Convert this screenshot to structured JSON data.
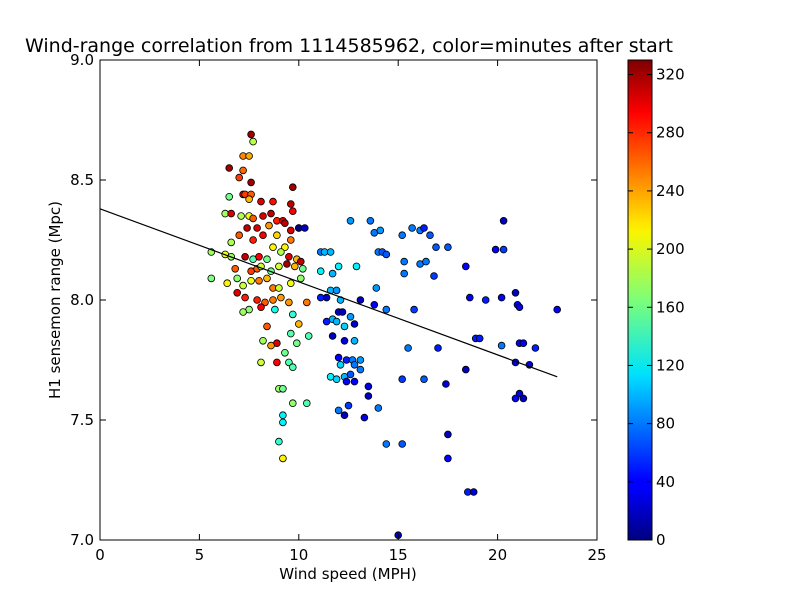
{
  "chart_data": {
    "type": "scatter",
    "title": "Wind-range correlation from 1114585962, color=minutes after start",
    "xlabel": "Wind speed (MPH)",
    "ylabel": "H1 sensemon range (Mpc)",
    "xlim": [
      0,
      25
    ],
    "ylim": [
      7.0,
      9.0
    ],
    "xticks": [
      "0",
      "5",
      "10",
      "15",
      "20",
      "25"
    ],
    "yticks": [
      "7.0",
      "7.5",
      "8.0",
      "8.5",
      "9.0"
    ],
    "grid": false,
    "colorbar": {
      "colormap": "jet",
      "range": [
        0,
        330
      ],
      "ticks": [
        "0",
        "40",
        "80",
        "120",
        "160",
        "200",
        "240",
        "280",
        "320"
      ]
    },
    "fit_line": {
      "x": [
        0,
        23
      ],
      "y": [
        8.38,
        7.68
      ]
    },
    "points": [
      [
        7.6,
        8.69,
        320
      ],
      [
        7.7,
        8.66,
        185
      ],
      [
        7.2,
        8.6,
        245
      ],
      [
        7.5,
        8.6,
        235
      ],
      [
        6.5,
        8.55,
        320
      ],
      [
        7.2,
        8.54,
        255
      ],
      [
        7.0,
        8.51,
        270
      ],
      [
        7.6,
        8.49,
        320
      ],
      [
        6.5,
        8.43,
        160
      ],
      [
        7.2,
        8.44,
        300
      ],
      [
        7.3,
        8.44,
        270
      ],
      [
        7.6,
        8.44,
        260
      ],
      [
        7.5,
        8.42,
        230
      ],
      [
        9.7,
        8.47,
        320
      ],
      [
        8.1,
        8.41,
        300
      ],
      [
        8.7,
        8.41,
        285
      ],
      [
        9.6,
        8.4,
        310
      ],
      [
        6.3,
        8.36,
        175
      ],
      [
        6.6,
        8.36,
        300
      ],
      [
        7.1,
        8.35,
        180
      ],
      [
        7.5,
        8.35,
        200
      ],
      [
        7.7,
        8.34,
        260
      ],
      [
        8.2,
        8.35,
        300
      ],
      [
        8.6,
        8.36,
        310
      ],
      [
        8.9,
        8.33,
        280
      ],
      [
        9.2,
        8.33,
        300
      ],
      [
        9.7,
        8.37,
        290
      ],
      [
        10.0,
        8.3,
        320
      ],
      [
        7.4,
        8.3,
        310
      ],
      [
        7.9,
        8.3,
        300
      ],
      [
        8.5,
        8.31,
        240
      ],
      [
        9.3,
        8.32,
        310
      ],
      [
        9.6,
        8.29,
        300
      ],
      [
        6.6,
        8.24,
        180
      ],
      [
        7.0,
        8.27,
        260
      ],
      [
        7.7,
        8.25,
        280
      ],
      [
        8.2,
        8.27,
        290
      ],
      [
        8.9,
        8.27,
        220
      ],
      [
        9.3,
        8.22,
        210
      ],
      [
        9.6,
        8.25,
        250
      ],
      [
        5.6,
        8.2,
        175
      ],
      [
        6.3,
        8.19,
        200
      ],
      [
        6.6,
        8.18,
        175
      ],
      [
        7.3,
        8.18,
        310
      ],
      [
        7.7,
        8.17,
        150
      ],
      [
        8.0,
        8.18,
        290
      ],
      [
        8.4,
        8.17,
        160
      ],
      [
        8.7,
        8.22,
        210
      ],
      [
        9.1,
        8.2,
        180
      ],
      [
        9.5,
        8.18,
        300
      ],
      [
        9.9,
        8.17,
        230
      ],
      [
        10.1,
        8.16,
        310
      ],
      [
        6.8,
        8.13,
        260
      ],
      [
        7.6,
        8.12,
        270
      ],
      [
        7.9,
        8.13,
        260
      ],
      [
        8.1,
        8.14,
        190
      ],
      [
        8.6,
        8.12,
        160
      ],
      [
        9.0,
        8.14,
        190
      ],
      [
        9.4,
        8.15,
        320
      ],
      [
        9.8,
        8.14,
        230
      ],
      [
        10.2,
        8.13,
        160
      ],
      [
        5.6,
        8.09,
        165
      ],
      [
        6.4,
        8.07,
        210
      ],
      [
        6.9,
        8.09,
        170
      ],
      [
        7.2,
        8.06,
        190
      ],
      [
        7.6,
        8.08,
        200
      ],
      [
        8.0,
        8.08,
        250
      ],
      [
        8.4,
        8.09,
        230
      ],
      [
        8.7,
        8.05,
        250
      ],
      [
        9.0,
        8.05,
        190
      ],
      [
        9.6,
        8.07,
        200
      ],
      [
        10.1,
        8.09,
        170
      ],
      [
        6.9,
        8.03,
        300
      ],
      [
        7.3,
        8.01,
        280
      ],
      [
        7.9,
        8.0,
        280
      ],
      [
        8.3,
        7.99,
        260
      ],
      [
        8.7,
        8.0,
        250
      ],
      [
        9.1,
        8.01,
        240
      ],
      [
        9.5,
        7.99,
        240
      ],
      [
        10.4,
        7.99,
        250
      ],
      [
        7.5,
        7.96,
        170
      ],
      [
        7.2,
        7.95,
        175
      ],
      [
        8.1,
        7.97,
        290
      ],
      [
        8.8,
        7.96,
        130
      ],
      [
        9.7,
        7.94,
        140
      ],
      [
        10.0,
        7.9,
        230
      ],
      [
        8.4,
        7.89,
        260
      ],
      [
        8.9,
        7.82,
        300
      ],
      [
        9.6,
        7.86,
        150
      ],
      [
        9.9,
        7.82,
        160
      ],
      [
        10.5,
        7.85,
        150
      ],
      [
        8.2,
        7.83,
        175
      ],
      [
        8.6,
        7.81,
        240
      ],
      [
        9.3,
        7.78,
        160
      ],
      [
        8.9,
        7.74,
        290
      ],
      [
        8.1,
        7.74,
        190
      ],
      [
        9.5,
        7.74,
        150
      ],
      [
        9.7,
        7.72,
        150
      ],
      [
        9.0,
        7.63,
        175
      ],
      [
        9.2,
        7.63,
        160
      ],
      [
        9.7,
        7.57,
        170
      ],
      [
        10.4,
        7.57,
        150
      ],
      [
        9.2,
        7.52,
        120
      ],
      [
        9.2,
        7.49,
        120
      ],
      [
        9.0,
        7.41,
        140
      ],
      [
        9.2,
        7.34,
        210
      ],
      [
        10.0,
        8.3,
        0
      ],
      [
        10.3,
        8.3,
        20
      ],
      [
        11.1,
        8.2,
        80
      ],
      [
        11.3,
        8.2,
        100
      ],
      [
        12.6,
        8.33,
        90
      ],
      [
        13.6,
        8.33,
        80
      ],
      [
        13.8,
        8.28,
        80
      ],
      [
        14.1,
        8.29,
        90
      ],
      [
        15.7,
        8.3,
        80
      ],
      [
        16.1,
        8.29,
        80
      ],
      [
        16.3,
        8.3,
        50
      ],
      [
        15.2,
        8.27,
        80
      ],
      [
        16.6,
        8.27,
        70
      ],
      [
        16.9,
        8.22,
        70
      ],
      [
        17.5,
        8.22,
        70
      ],
      [
        11.6,
        8.2,
        100
      ],
      [
        11.1,
        8.12,
        120
      ],
      [
        11.7,
        8.11,
        100
      ],
      [
        12.0,
        8.14,
        120
      ],
      [
        12.9,
        8.14,
        120
      ],
      [
        14.0,
        8.2,
        80
      ],
      [
        14.2,
        8.2,
        70
      ],
      [
        14.4,
        8.19,
        70
      ],
      [
        15.3,
        8.16,
        80
      ],
      [
        15.3,
        8.11,
        80
      ],
      [
        16.1,
        8.15,
        80
      ],
      [
        16.8,
        8.1,
        60
      ],
      [
        16.4,
        8.16,
        80
      ],
      [
        18.4,
        8.14,
        40
      ],
      [
        19.9,
        8.21,
        40
      ],
      [
        20.3,
        8.21,
        60
      ],
      [
        20.3,
        8.33,
        20
      ],
      [
        11.6,
        8.04,
        100
      ],
      [
        11.9,
        8.04,
        90
      ],
      [
        11.1,
        8.01,
        50
      ],
      [
        11.4,
        8.01,
        20
      ],
      [
        12.1,
        8.0,
        100
      ],
      [
        13.1,
        8.0,
        20
      ],
      [
        13.9,
        8.05,
        90
      ],
      [
        13.8,
        7.98,
        40
      ],
      [
        14.4,
        7.96,
        80
      ],
      [
        15.8,
        7.96,
        60
      ],
      [
        18.6,
        8.01,
        40
      ],
      [
        19.4,
        8.0,
        50
      ],
      [
        20.2,
        8.01,
        40
      ],
      [
        20.9,
        8.03,
        20
      ],
      [
        21.0,
        7.98,
        40
      ],
      [
        21.1,
        7.97,
        40
      ],
      [
        23.0,
        7.96,
        40
      ],
      [
        11.4,
        7.91,
        50
      ],
      [
        11.7,
        7.92,
        100
      ],
      [
        12.0,
        7.95,
        20
      ],
      [
        12.2,
        7.95,
        20
      ],
      [
        12.6,
        7.93,
        90
      ],
      [
        11.9,
        7.91,
        100
      ],
      [
        12.3,
        7.89,
        110
      ],
      [
        12.8,
        7.9,
        20
      ],
      [
        11.7,
        7.85,
        20
      ],
      [
        12.3,
        7.83,
        30
      ],
      [
        12.8,
        7.83,
        100
      ],
      [
        15.5,
        7.8,
        80
      ],
      [
        17.0,
        7.8,
        50
      ],
      [
        18.9,
        7.84,
        50
      ],
      [
        19.1,
        7.84,
        50
      ],
      [
        20.2,
        7.81,
        80
      ],
      [
        21.1,
        7.82,
        40
      ],
      [
        21.3,
        7.82,
        40
      ],
      [
        21.9,
        7.8,
        50
      ],
      [
        12.0,
        7.76,
        40
      ],
      [
        12.4,
        7.75,
        50
      ],
      [
        12.7,
        7.75,
        80
      ],
      [
        13.1,
        7.75,
        90
      ],
      [
        12.1,
        7.73,
        110
      ],
      [
        12.8,
        7.73,
        80
      ],
      [
        13.1,
        7.71,
        80
      ],
      [
        11.6,
        7.68,
        120
      ],
      [
        11.9,
        7.67,
        110
      ],
      [
        12.3,
        7.68,
        100
      ],
      [
        12.6,
        7.69,
        70
      ],
      [
        12.4,
        7.66,
        40
      ],
      [
        12.8,
        7.66,
        40
      ],
      [
        15.2,
        7.67,
        60
      ],
      [
        16.3,
        7.67,
        70
      ],
      [
        17.4,
        7.65,
        30
      ],
      [
        18.4,
        7.71,
        20
      ],
      [
        20.9,
        7.74,
        30
      ],
      [
        21.6,
        7.73,
        30
      ],
      [
        13.5,
        7.64,
        30
      ],
      [
        13.5,
        7.6,
        20
      ],
      [
        12.5,
        7.56,
        60
      ],
      [
        12.3,
        7.52,
        20
      ],
      [
        12.0,
        7.54,
        80
      ],
      [
        13.3,
        7.51,
        30
      ],
      [
        14.0,
        7.55,
        80
      ],
      [
        20.9,
        7.59,
        40
      ],
      [
        21.1,
        7.61,
        30
      ],
      [
        21.3,
        7.59,
        20
      ],
      [
        17.5,
        7.44,
        20
      ],
      [
        14.4,
        7.4,
        80
      ],
      [
        15.2,
        7.4,
        70
      ],
      [
        17.5,
        7.34,
        40
      ],
      [
        18.5,
        7.2,
        50
      ],
      [
        18.8,
        7.2,
        30
      ],
      [
        15.0,
        7.02,
        20
      ]
    ]
  }
}
